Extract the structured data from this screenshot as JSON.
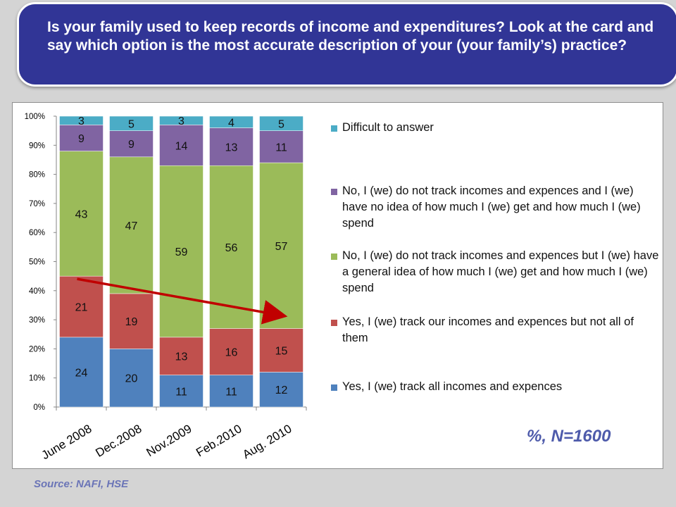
{
  "title": "Is your family used to keep records of income and expenditures?  Look at the card and say which option is the most accurate description of your (your family’s) practice?",
  "note": "%, N=1600",
  "source": "Source:  NAFI, HSE",
  "colors": {
    "header_bg": "#313596",
    "all": "#4f81bd",
    "not_all": "#c0504d",
    "general_idea": "#9bbb59",
    "no_idea": "#8064a2",
    "difficult": "#4bacc6",
    "arrow": "#c00000"
  },
  "chart_data": {
    "type": "bar",
    "stacked": true,
    "categories": [
      "June 2008",
      "Dec.2008",
      "Nov.2009",
      "Feb.2010",
      "Aug. 2010"
    ],
    "ylim": [
      0,
      100
    ],
    "yticks": [
      "0%",
      "10%",
      "20%",
      "30%",
      "40%",
      "50%",
      "60%",
      "70%",
      "80%",
      "90%",
      "100%"
    ],
    "legend_position": "right",
    "series": [
      {
        "name": "Yes, I (we) track all incomes and expences",
        "color": "#4f81bd",
        "values": [
          24,
          20,
          11,
          11,
          12
        ]
      },
      {
        "name": "Yes, I (we) track our incomes and expences but not all of them",
        "color": "#c0504d",
        "values": [
          21,
          19,
          13,
          16,
          15
        ]
      },
      {
        "name": "No, I (we) do not track incomes and expences but I (we)  have a general idea of how much I (we) get and how much I (we) spend",
        "color": "#9bbb59",
        "values": [
          43,
          47,
          59,
          56,
          57
        ]
      },
      {
        "name": "No, I (we) do not track incomes and expences and I (we) have no idea of how much I (we) get and how much I (we) spend",
        "color": "#8064a2",
        "values": [
          9,
          9,
          14,
          13,
          11
        ]
      },
      {
        "name": "Difficult to answer",
        "color": "#4bacc6",
        "values": [
          3,
          5,
          3,
          4,
          5
        ]
      }
    ],
    "trend_arrow": {
      "from_category": "June 2008",
      "to_category": "Aug. 2010",
      "from_value": 45,
      "to_value": 29
    }
  }
}
